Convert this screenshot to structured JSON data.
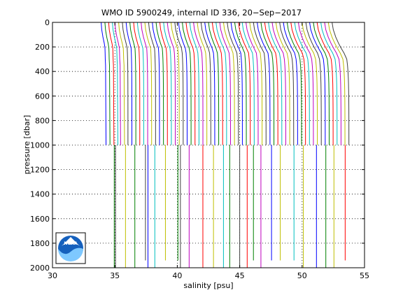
{
  "chart_data": {
    "type": "line",
    "title": "WMO ID 5900249, internal ID 336, 20−Sep−2017",
    "xlabel": "salinity [psu]",
    "ylabel": "pressure [dbar]",
    "xlim": [
      30,
      55
    ],
    "ylim": [
      0,
      2000
    ],
    "y_reversed": true,
    "grid": "dotted",
    "xticks": [
      30,
      35,
      40,
      45,
      50,
      55
    ],
    "yticks": [
      0,
      200,
      400,
      600,
      800,
      1000,
      1200,
      1400,
      1600,
      1800,
      2000
    ],
    "xtick_labels": [
      "30",
      "35",
      "40",
      "45",
      "50",
      "55"
    ],
    "ytick_labels": [
      "0",
      "200",
      "400",
      "600",
      "800",
      "1000",
      "1200",
      "1400",
      "1600",
      "1800",
      "2000"
    ],
    "colors": [
      "#0000ff",
      "#008000",
      "#ff0000",
      "#00bfbf",
      "#bf00bf",
      "#bfbf00",
      "#404040"
    ],
    "profile_offset_note": "",
    "series_start_salinity": [
      33.9,
      34.2,
      34.5,
      34.8,
      35.0,
      35.3,
      35.6,
      35.9,
      36.2,
      36.5,
      36.8,
      37.1,
      37.4,
      37.7,
      38.0,
      38.3,
      38.6,
      38.9,
      39.2,
      39.5,
      39.8,
      40.1,
      40.4,
      40.7,
      41.0,
      41.3,
      41.6,
      41.9,
      42.2,
      42.5,
      42.8,
      43.1,
      43.4,
      43.7,
      44.0,
      44.3,
      44.6,
      44.9,
      45.2,
      45.5,
      45.8,
      46.1,
      46.4,
      46.7,
      47.0,
      47.3,
      47.6,
      47.9,
      48.2,
      48.5,
      48.8,
      49.1,
      49.4,
      49.7,
      50.0,
      50.3,
      50.6,
      50.9,
      51.2,
      51.5,
      51.8,
      52.1,
      52.4
    ],
    "shallow_end_pressure": 1000,
    "deep_profiles": [
      {
        "salinity": 34.95,
        "end_pressure": 2000,
        "color": "#008000"
      },
      {
        "salinity": 35.05,
        "end_pressure": 2000,
        "color": "#404040"
      },
      {
        "salinity": 35.85,
        "end_pressure": 2000,
        "color": "#bfbf00"
      },
      {
        "salinity": 36.6,
        "end_pressure": 2000,
        "color": "#008000"
      },
      {
        "salinity": 37.45,
        "end_pressure": 1940,
        "color": "#404040"
      },
      {
        "salinity": 37.65,
        "end_pressure": 2000,
        "color": "#0000ff"
      },
      {
        "salinity": 38.2,
        "end_pressure": 2000,
        "color": "#00bfbf"
      },
      {
        "salinity": 39.05,
        "end_pressure": 1940,
        "color": "#bfbf00"
      },
      {
        "salinity": 40.05,
        "end_pressure": 1940,
        "color": "#008000"
      },
      {
        "salinity": 40.25,
        "end_pressure": 2000,
        "color": "#404040"
      },
      {
        "salinity": 40.95,
        "end_pressure": 2000,
        "color": "#bf00bf"
      },
      {
        "salinity": 42.05,
        "end_pressure": 2000,
        "color": "#ff0000"
      },
      {
        "salinity": 42.9,
        "end_pressure": 2000,
        "color": "#bfbf00"
      },
      {
        "salinity": 43.7,
        "end_pressure": 2000,
        "color": "#00bfbf"
      },
      {
        "salinity": 44.2,
        "end_pressure": 2000,
        "color": "#008000"
      },
      {
        "salinity": 45.0,
        "end_pressure": 2000,
        "color": "#404040"
      },
      {
        "salinity": 45.6,
        "end_pressure": 2000,
        "color": "#ff0000"
      },
      {
        "salinity": 46.1,
        "end_pressure": 1940,
        "color": "#008000"
      },
      {
        "salinity": 46.7,
        "end_pressure": 2000,
        "color": "#bf00bf"
      },
      {
        "salinity": 47.55,
        "end_pressure": 1940,
        "color": "#0000ff"
      },
      {
        "salinity": 48.25,
        "end_pressure": 1940,
        "color": "#bfbf00"
      },
      {
        "salinity": 49.35,
        "end_pressure": 1940,
        "color": "#00bfbf"
      },
      {
        "salinity": 50.1,
        "end_pressure": 2000,
        "color": "#bfbf00"
      },
      {
        "salinity": 51.15,
        "end_pressure": 2000,
        "color": "#0000ff"
      },
      {
        "salinity": 51.9,
        "end_pressure": 2000,
        "color": "#008000"
      },
      {
        "salinity": 52.55,
        "end_pressure": 2000,
        "color": "#bfbf00"
      },
      {
        "salinity": 53.45,
        "end_pressure": 1940,
        "color": "#ff0000"
      }
    ]
  },
  "logo": {
    "text": "NOAA"
  }
}
